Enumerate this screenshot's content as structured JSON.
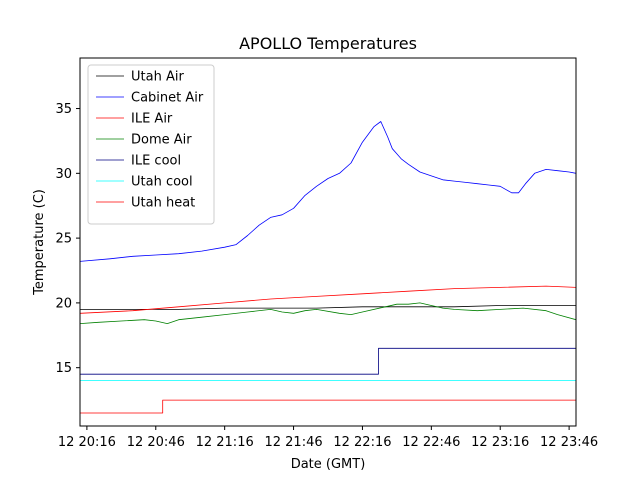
{
  "chart_data": {
    "type": "line",
    "title": "APOLLO Temperatures",
    "xlabel": "Date (GMT)",
    "ylabel": "Temperature (C)",
    "x_unit": "minutes since 12 20:16",
    "xlim": [
      -3,
      213
    ],
    "ylim": [
      10.5,
      38.9
    ],
    "x_ticks": [
      {
        "value": 0,
        "label": "12 20:16"
      },
      {
        "value": 30,
        "label": "12 20:46"
      },
      {
        "value": 60,
        "label": "12 21:16"
      },
      {
        "value": 90,
        "label": "12 21:46"
      },
      {
        "value": 120,
        "label": "12 22:16"
      },
      {
        "value": 150,
        "label": "12 22:46"
      },
      {
        "value": 180,
        "label": "12 23:16"
      },
      {
        "value": 210,
        "label": "12 23:46"
      }
    ],
    "y_ticks": [
      {
        "value": 15,
        "label": "15"
      },
      {
        "value": 20,
        "label": "20"
      },
      {
        "value": 25,
        "label": "25"
      },
      {
        "value": 30,
        "label": "30"
      },
      {
        "value": 35,
        "label": "35"
      }
    ],
    "legend_position": "top-left",
    "series": [
      {
        "name": "Utah Air",
        "color": "#000000",
        "step": false,
        "x": [
          -3,
          20,
          40,
          60,
          80,
          100,
          120,
          140,
          160,
          180,
          200,
          213
        ],
        "y": [
          19.5,
          19.5,
          19.5,
          19.6,
          19.6,
          19.6,
          19.7,
          19.7,
          19.7,
          19.8,
          19.8,
          19.8
        ]
      },
      {
        "name": "Cabinet Air",
        "color": "#0000ff",
        "step": false,
        "x": [
          -3,
          10,
          20,
          30,
          40,
          50,
          60,
          65,
          70,
          75,
          80,
          85,
          90,
          95,
          100,
          105,
          110,
          115,
          120,
          125,
          128,
          131,
          133,
          135,
          137,
          140,
          145,
          150,
          155,
          160,
          165,
          170,
          175,
          180,
          185,
          188,
          191,
          195,
          200,
          205,
          210,
          213
        ],
        "y": [
          23.2,
          23.4,
          23.6,
          23.7,
          23.8,
          24.0,
          24.3,
          24.5,
          25.2,
          26.0,
          26.6,
          26.8,
          27.3,
          28.3,
          29.0,
          29.6,
          30.0,
          30.8,
          32.4,
          33.6,
          34.0,
          32.8,
          31.9,
          31.5,
          31.1,
          30.7,
          30.1,
          29.8,
          29.5,
          29.4,
          29.3,
          29.2,
          29.1,
          29.0,
          28.5,
          28.5,
          29.2,
          30.0,
          30.3,
          30.2,
          30.1,
          30.0
        ]
      },
      {
        "name": "ILE Air",
        "color": "#ff0000",
        "step": false,
        "x": [
          -3,
          20,
          40,
          60,
          80,
          100,
          120,
          140,
          160,
          180,
          200,
          213
        ],
        "y": [
          19.2,
          19.4,
          19.7,
          20.0,
          20.3,
          20.5,
          20.7,
          20.9,
          21.1,
          21.2,
          21.3,
          21.2
        ]
      },
      {
        "name": "Dome Air",
        "color": "#008000",
        "step": false,
        "x": [
          -3,
          5,
          15,
          25,
          30,
          35,
          40,
          50,
          60,
          70,
          80,
          85,
          90,
          95,
          100,
          110,
          115,
          120,
          130,
          135,
          140,
          145,
          150,
          155,
          160,
          170,
          180,
          190,
          200,
          205,
          213
        ],
        "y": [
          18.4,
          18.5,
          18.6,
          18.7,
          18.6,
          18.4,
          18.7,
          18.9,
          19.1,
          19.3,
          19.5,
          19.3,
          19.2,
          19.4,
          19.5,
          19.2,
          19.1,
          19.3,
          19.7,
          19.9,
          19.9,
          20.0,
          19.8,
          19.6,
          19.5,
          19.4,
          19.5,
          19.6,
          19.4,
          19.1,
          18.7
        ]
      },
      {
        "name": "ILE cool",
        "color": "#000080",
        "step": true,
        "x": [
          -3,
          127,
          127,
          213
        ],
        "y": [
          14.5,
          14.5,
          16.5,
          16.5
        ]
      },
      {
        "name": "Utah cool",
        "color": "#00ffff",
        "step": false,
        "x": [
          -3,
          213
        ],
        "y": [
          14.0,
          14.0
        ]
      },
      {
        "name": "Utah heat",
        "color": "#ff0000",
        "step": true,
        "x": [
          -3,
          33,
          33,
          213
        ],
        "y": [
          11.5,
          11.5,
          12.5,
          12.5
        ]
      }
    ]
  }
}
